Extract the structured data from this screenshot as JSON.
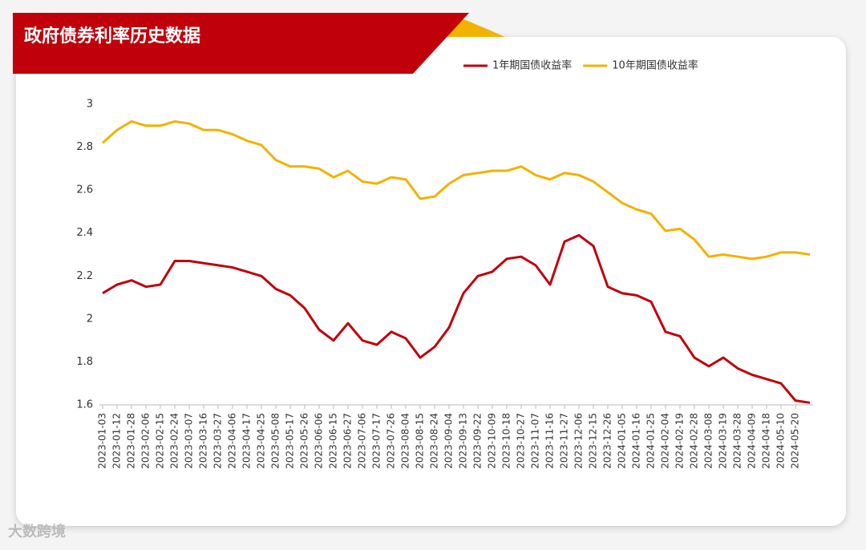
{
  "chart_data": {
    "type": "line",
    "title": "政府债券利率历史数据",
    "watermark": "大数跨境",
    "categories": [
      "2023-01-03",
      "2023-01-12",
      "2023-01-28",
      "2023-02-06",
      "2023-02-15",
      "2023-02-24",
      "2023-03-07",
      "2023-03-16",
      "2023-03-27",
      "2023-04-06",
      "2023-04-17",
      "2023-04-25",
      "2023-05-08",
      "2023-05-17",
      "2023-05-26",
      "2023-06-06",
      "2023-06-15",
      "2023-06-27",
      "2023-07-06",
      "2023-07-17",
      "2023-07-26",
      "2023-08-04",
      "2023-08-15",
      "2023-08-24",
      "2023-09-04",
      "2023-09-13",
      "2023-09-22",
      "2023-10-09",
      "2023-10-18",
      "2023-10-27",
      "2023-11-07",
      "2023-11-16",
      "2023-11-27",
      "2023-12-06",
      "2023-12-15",
      "2023-12-26",
      "2024-01-05",
      "2024-01-16",
      "2024-01-25",
      "2024-02-04",
      "2024-02-19",
      "2024-02-28",
      "2024-03-08",
      "2024-03-19",
      "2024-03-28",
      "2024-04-09",
      "2024-04-18",
      "2024-05-10",
      "2024-05-20",
      null
    ],
    "series": [
      {
        "name": "1年期国债收益率",
        "color": "#c0000b",
        "values": [
          2.12,
          2.16,
          2.18,
          2.15,
          2.16,
          2.27,
          2.27,
          2.26,
          2.25,
          2.24,
          2.22,
          2.2,
          2.14,
          2.11,
          2.05,
          1.95,
          1.9,
          1.98,
          1.9,
          1.88,
          1.94,
          1.91,
          1.82,
          1.87,
          1.96,
          2.12,
          2.2,
          2.22,
          2.28,
          2.29,
          2.25,
          2.16,
          2.36,
          2.39,
          2.34,
          2.15,
          2.12,
          2.11,
          2.08,
          1.94,
          1.92,
          1.82,
          1.78,
          1.82,
          1.77,
          1.74,
          1.72,
          1.7,
          1.62,
          1.61
        ]
      },
      {
        "name": "10年期国债收益率",
        "color": "#f2b200",
        "values": [
          2.82,
          2.88,
          2.92,
          2.9,
          2.9,
          2.92,
          2.91,
          2.88,
          2.88,
          2.86,
          2.83,
          2.81,
          2.74,
          2.71,
          2.71,
          2.7,
          2.66,
          2.69,
          2.64,
          2.63,
          2.66,
          2.65,
          2.56,
          2.57,
          2.63,
          2.67,
          2.68,
          2.69,
          2.69,
          2.71,
          2.67,
          2.65,
          2.68,
          2.67,
          2.64,
          2.59,
          2.54,
          2.51,
          2.49,
          2.41,
          2.42,
          2.37,
          2.29,
          2.3,
          2.29,
          2.28,
          2.29,
          2.31,
          2.31,
          2.3
        ]
      }
    ],
    "ylim": [
      1.6,
      3
    ],
    "yticks": [
      1.6,
      1.8,
      2,
      2.2,
      2.4,
      2.6,
      2.8,
      3
    ],
    "grid": false,
    "legend": "top-right"
  }
}
